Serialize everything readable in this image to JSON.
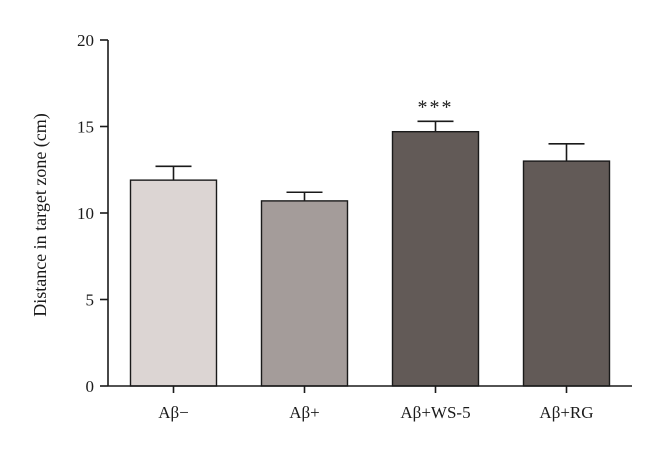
{
  "chart_data": {
    "type": "bar",
    "title": "",
    "xlabel": "",
    "ylabel": "Distance in target zone (cm)",
    "ylim": [
      0,
      20
    ],
    "yticks": [
      "0",
      "5",
      "10",
      "15",
      "20"
    ],
    "categories": [
      "Aβ−",
      "Aβ+",
      "Aβ+WS-5",
      "Aβ+RG"
    ],
    "values": [
      11.9,
      10.7,
      14.7,
      13.0
    ],
    "errors": [
      0.8,
      0.5,
      0.6,
      1.0
    ],
    "colors": [
      "#dcd5d3",
      "#a49c9a",
      "#625a57",
      "#625a57"
    ],
    "annotations": [
      "",
      "",
      "***",
      ""
    ],
    "grid": false
  }
}
